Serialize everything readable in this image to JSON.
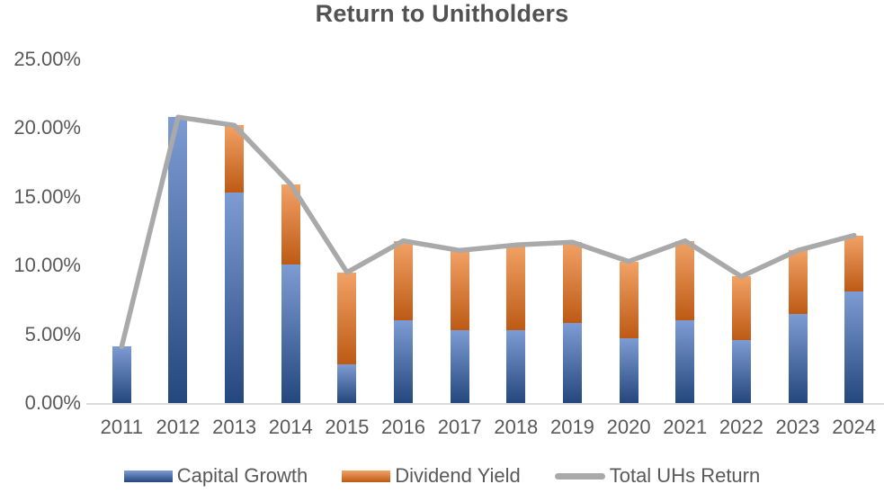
{
  "title": "Return to Unitholders",
  "colors": {
    "capital_growth_top": "#7E9CD4",
    "capital_growth_bottom": "#24477E",
    "dividend_yield_top": "#F2A266",
    "dividend_yield_bottom": "#BD5A15",
    "total_line": "#A9A9A9",
    "axis_line": "#D9D9D9",
    "text": "#595959"
  },
  "chart_data": {
    "type": "bar",
    "subtype": "stacked-bar-with-line-overlay",
    "title": "Return to Unitholders",
    "categories": [
      "2011",
      "2012",
      "2013",
      "2014",
      "2015",
      "2016",
      "2017",
      "2018",
      "2019",
      "2020",
      "2021",
      "2022",
      "2023",
      "2024"
    ],
    "series": [
      {
        "name": "Capital Growth",
        "type": "bar",
        "values": [
          4.1,
          20.8,
          15.3,
          10.1,
          2.8,
          6.0,
          5.3,
          5.3,
          5.8,
          4.7,
          6.0,
          4.6,
          6.5,
          8.1
        ]
      },
      {
        "name": "Dividend Yield",
        "type": "bar",
        "values": [
          0,
          0,
          4.9,
          5.8,
          6.7,
          5.8,
          5.8,
          6.2,
          5.9,
          5.6,
          5.8,
          4.6,
          4.6,
          4.1
        ]
      },
      {
        "name": "Total UHs Return",
        "type": "line",
        "values": [
          4.1,
          20.8,
          20.2,
          15.9,
          9.5,
          11.8,
          11.1,
          11.5,
          11.7,
          10.3,
          11.8,
          9.2,
          11.1,
          12.2
        ]
      }
    ],
    "ylabel": "",
    "xlabel": "",
    "ylim": [
      0,
      25
    ],
    "y_tick_step": 5,
    "y_tick_labels": [
      "0.00%",
      "5.00%",
      "10.00%",
      "15.00%",
      "20.00%",
      "25.00%"
    ],
    "grid": false,
    "legend_position": "bottom",
    "values_unit": "percent"
  }
}
